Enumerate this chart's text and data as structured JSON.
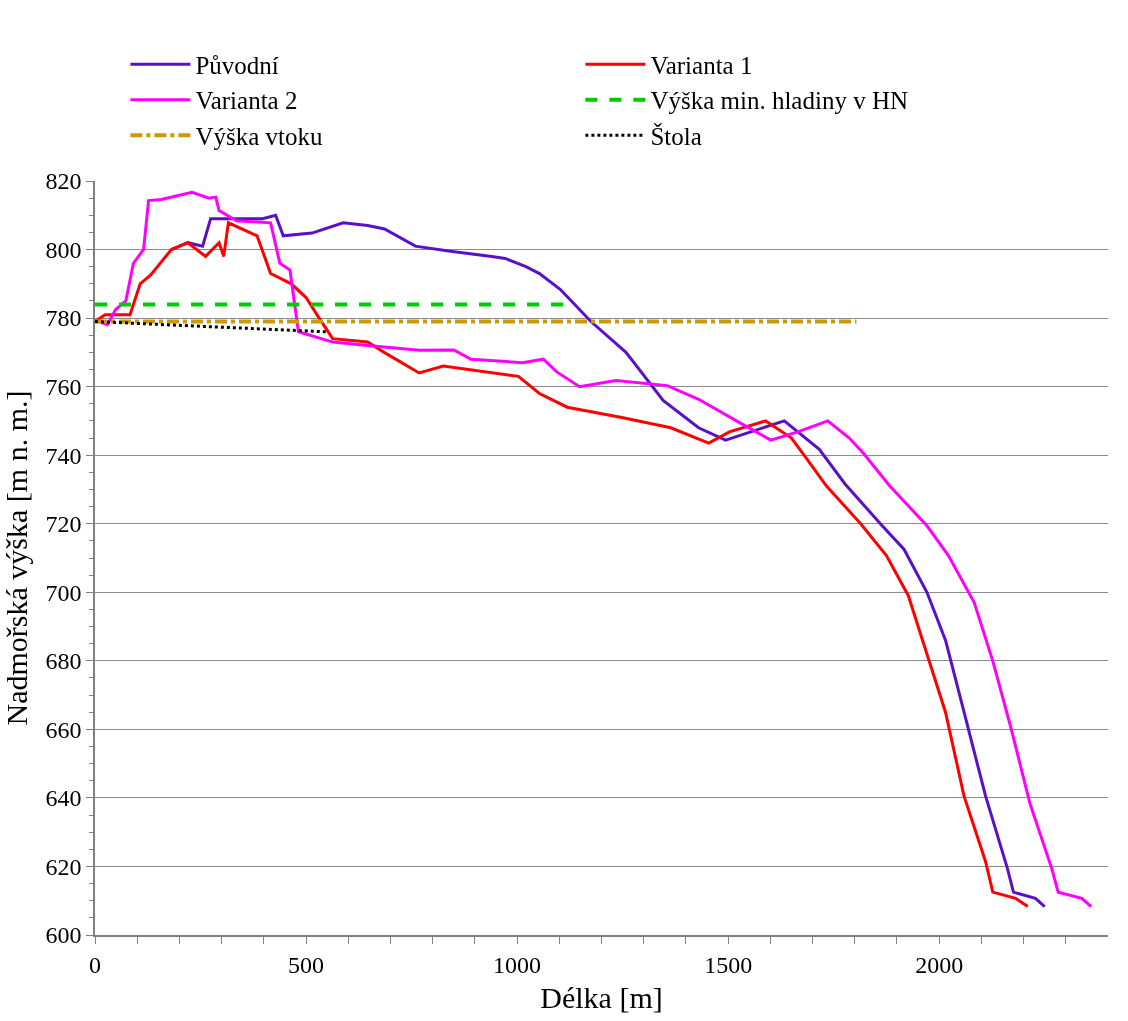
{
  "chart_data": {
    "type": "line",
    "xlabel": "Délka [m]",
    "ylabel": "Nadmořská výška [m n. m.]",
    "legend": "top",
    "grid": "y",
    "marker": "none",
    "xlim": [
      0,
      2400
    ],
    "xticks": [
      0,
      {
        "value": 100,
        "label": null
      },
      {
        "value": 200,
        "label": null
      },
      {
        "value": 300,
        "label": null
      },
      {
        "value": 400,
        "label": null
      },
      500,
      {
        "value": 600,
        "label": null
      },
      {
        "value": 700,
        "label": null
      },
      {
        "value": 800,
        "label": null
      },
      {
        "value": 900,
        "label": null
      },
      1000,
      {
        "value": 1100,
        "label": null
      },
      {
        "value": 1200,
        "label": null
      },
      {
        "value": 1300,
        "label": null
      },
      {
        "value": 1400,
        "label": null
      },
      1500,
      {
        "value": 1600,
        "label": null
      },
      {
        "value": 1700,
        "label": null
      },
      {
        "value": 1800,
        "label": null
      },
      {
        "value": 1900,
        "label": null
      },
      2000,
      {
        "value": 2100,
        "label": null
      },
      {
        "value": 2200,
        "label": null
      },
      {
        "value": 2300,
        "label": null
      }
    ],
    "ylim": [
      600,
      820
    ],
    "yticks": [
      600,
      620,
      640,
      660,
      680,
      700,
      720,
      740,
      760,
      780,
      800,
      820
    ],
    "series": [
      {
        "name": "Původní",
        "color": "#5a10c8",
        "line_style": "solid",
        "x": [
          181,
          220,
          255,
          274,
          397,
          428,
          446,
          514,
          588,
          646,
          686,
          759,
          842,
          940,
          972,
          1021,
          1053,
          1102,
          1175,
          1258,
          1346,
          1430,
          1494,
          1633,
          1716,
          1777,
          1865,
          1917,
          1971,
          2015,
          2059,
          2110,
          2162,
          2176,
          2228,
          2250
        ],
        "values": [
          800,
          802,
          801,
          809,
          809,
          810,
          804,
          804.8,
          807.8,
          807,
          806,
          801,
          799.5,
          798,
          797.4,
          795,
          793,
          788.4,
          779,
          770,
          756,
          748,
          744.4,
          750,
          741.7,
          731.6,
          719.4,
          712.5,
          700,
          686,
          665,
          640.5,
          619.3,
          612.5,
          610.7,
          608.3
        ]
      },
      {
        "name": "Varianta 1",
        "color": "#ff0000",
        "line_style": "solid",
        "x": [
          0,
          24,
          83,
          107,
          132,
          181,
          220,
          262,
          294,
          305,
          316,
          384,
          416,
          465,
          500,
          531,
          563,
          646,
          685,
          768,
          825,
          1003,
          1053,
          1119,
          1248,
          1364,
          1454,
          1503,
          1589,
          1650,
          1689,
          1733,
          1814,
          1875,
          1927,
          1971,
          2015,
          2059,
          2110,
          2127,
          2181,
          2210
        ],
        "values": [
          779,
          781,
          781,
          790,
          792.6,
          800,
          802,
          798,
          802,
          798,
          807.8,
          804,
          793,
          790,
          786,
          780,
          774,
          773,
          770,
          764,
          766,
          763,
          758,
          754,
          751,
          748,
          743.5,
          746.8,
          750,
          745,
          738.5,
          731,
          720,
          710.7,
          699,
          682,
          665,
          640.5,
          621.4,
          612.5,
          610.7,
          608.3
        ]
      },
      {
        "name": "Varianta 2",
        "color": "#ff00ff",
        "line_style": "solid",
        "x": [
          0,
          29,
          49,
          73,
          91,
          115,
          127,
          157,
          230,
          270,
          286,
          294,
          335,
          416,
          438,
          462,
          482,
          563,
          646,
          769,
          850,
          891,
          1013,
          1062,
          1094,
          1148,
          1234,
          1356,
          1430,
          1527,
          1601,
          1665,
          1736,
          1787,
          1821,
          1883,
          1971,
          2022,
          2083,
          2127,
          2171,
          2215,
          2267,
          2282,
          2338,
          2360
        ],
        "values": [
          779.5,
          778,
          782.5,
          785,
          796,
          800,
          814.3,
          814.6,
          816.7,
          815,
          815.3,
          811.4,
          808.4,
          807.8,
          796,
          794,
          776,
          773,
          772,
          770.6,
          770.7,
          768,
          767,
          768,
          764.3,
          760,
          761.8,
          760.3,
          756.3,
          749.5,
          744.4,
          746.8,
          750,
          745,
          740.5,
          731,
          719.4,
          710.7,
          697,
          680,
          660,
          638.4,
          619.3,
          612.5,
          610.7,
          608.3
        ]
      },
      {
        "name": "Výška min. hladiny v HN",
        "color": "#00cc00",
        "line_style": "dashed",
        "x": [
          0,
          1120
        ],
        "values": [
          784,
          784
        ]
      },
      {
        "name": "Výška vtoku",
        "color": "#cc9900",
        "line_style": "dashdot",
        "x": [
          0,
          1804
        ],
        "values": [
          779,
          779
        ]
      },
      {
        "name": "Štola",
        "color": "#000000",
        "line_style": "dotted",
        "x": [
          0,
          270,
          548
        ],
        "values": [
          779,
          777.5,
          776
        ]
      }
    ]
  }
}
